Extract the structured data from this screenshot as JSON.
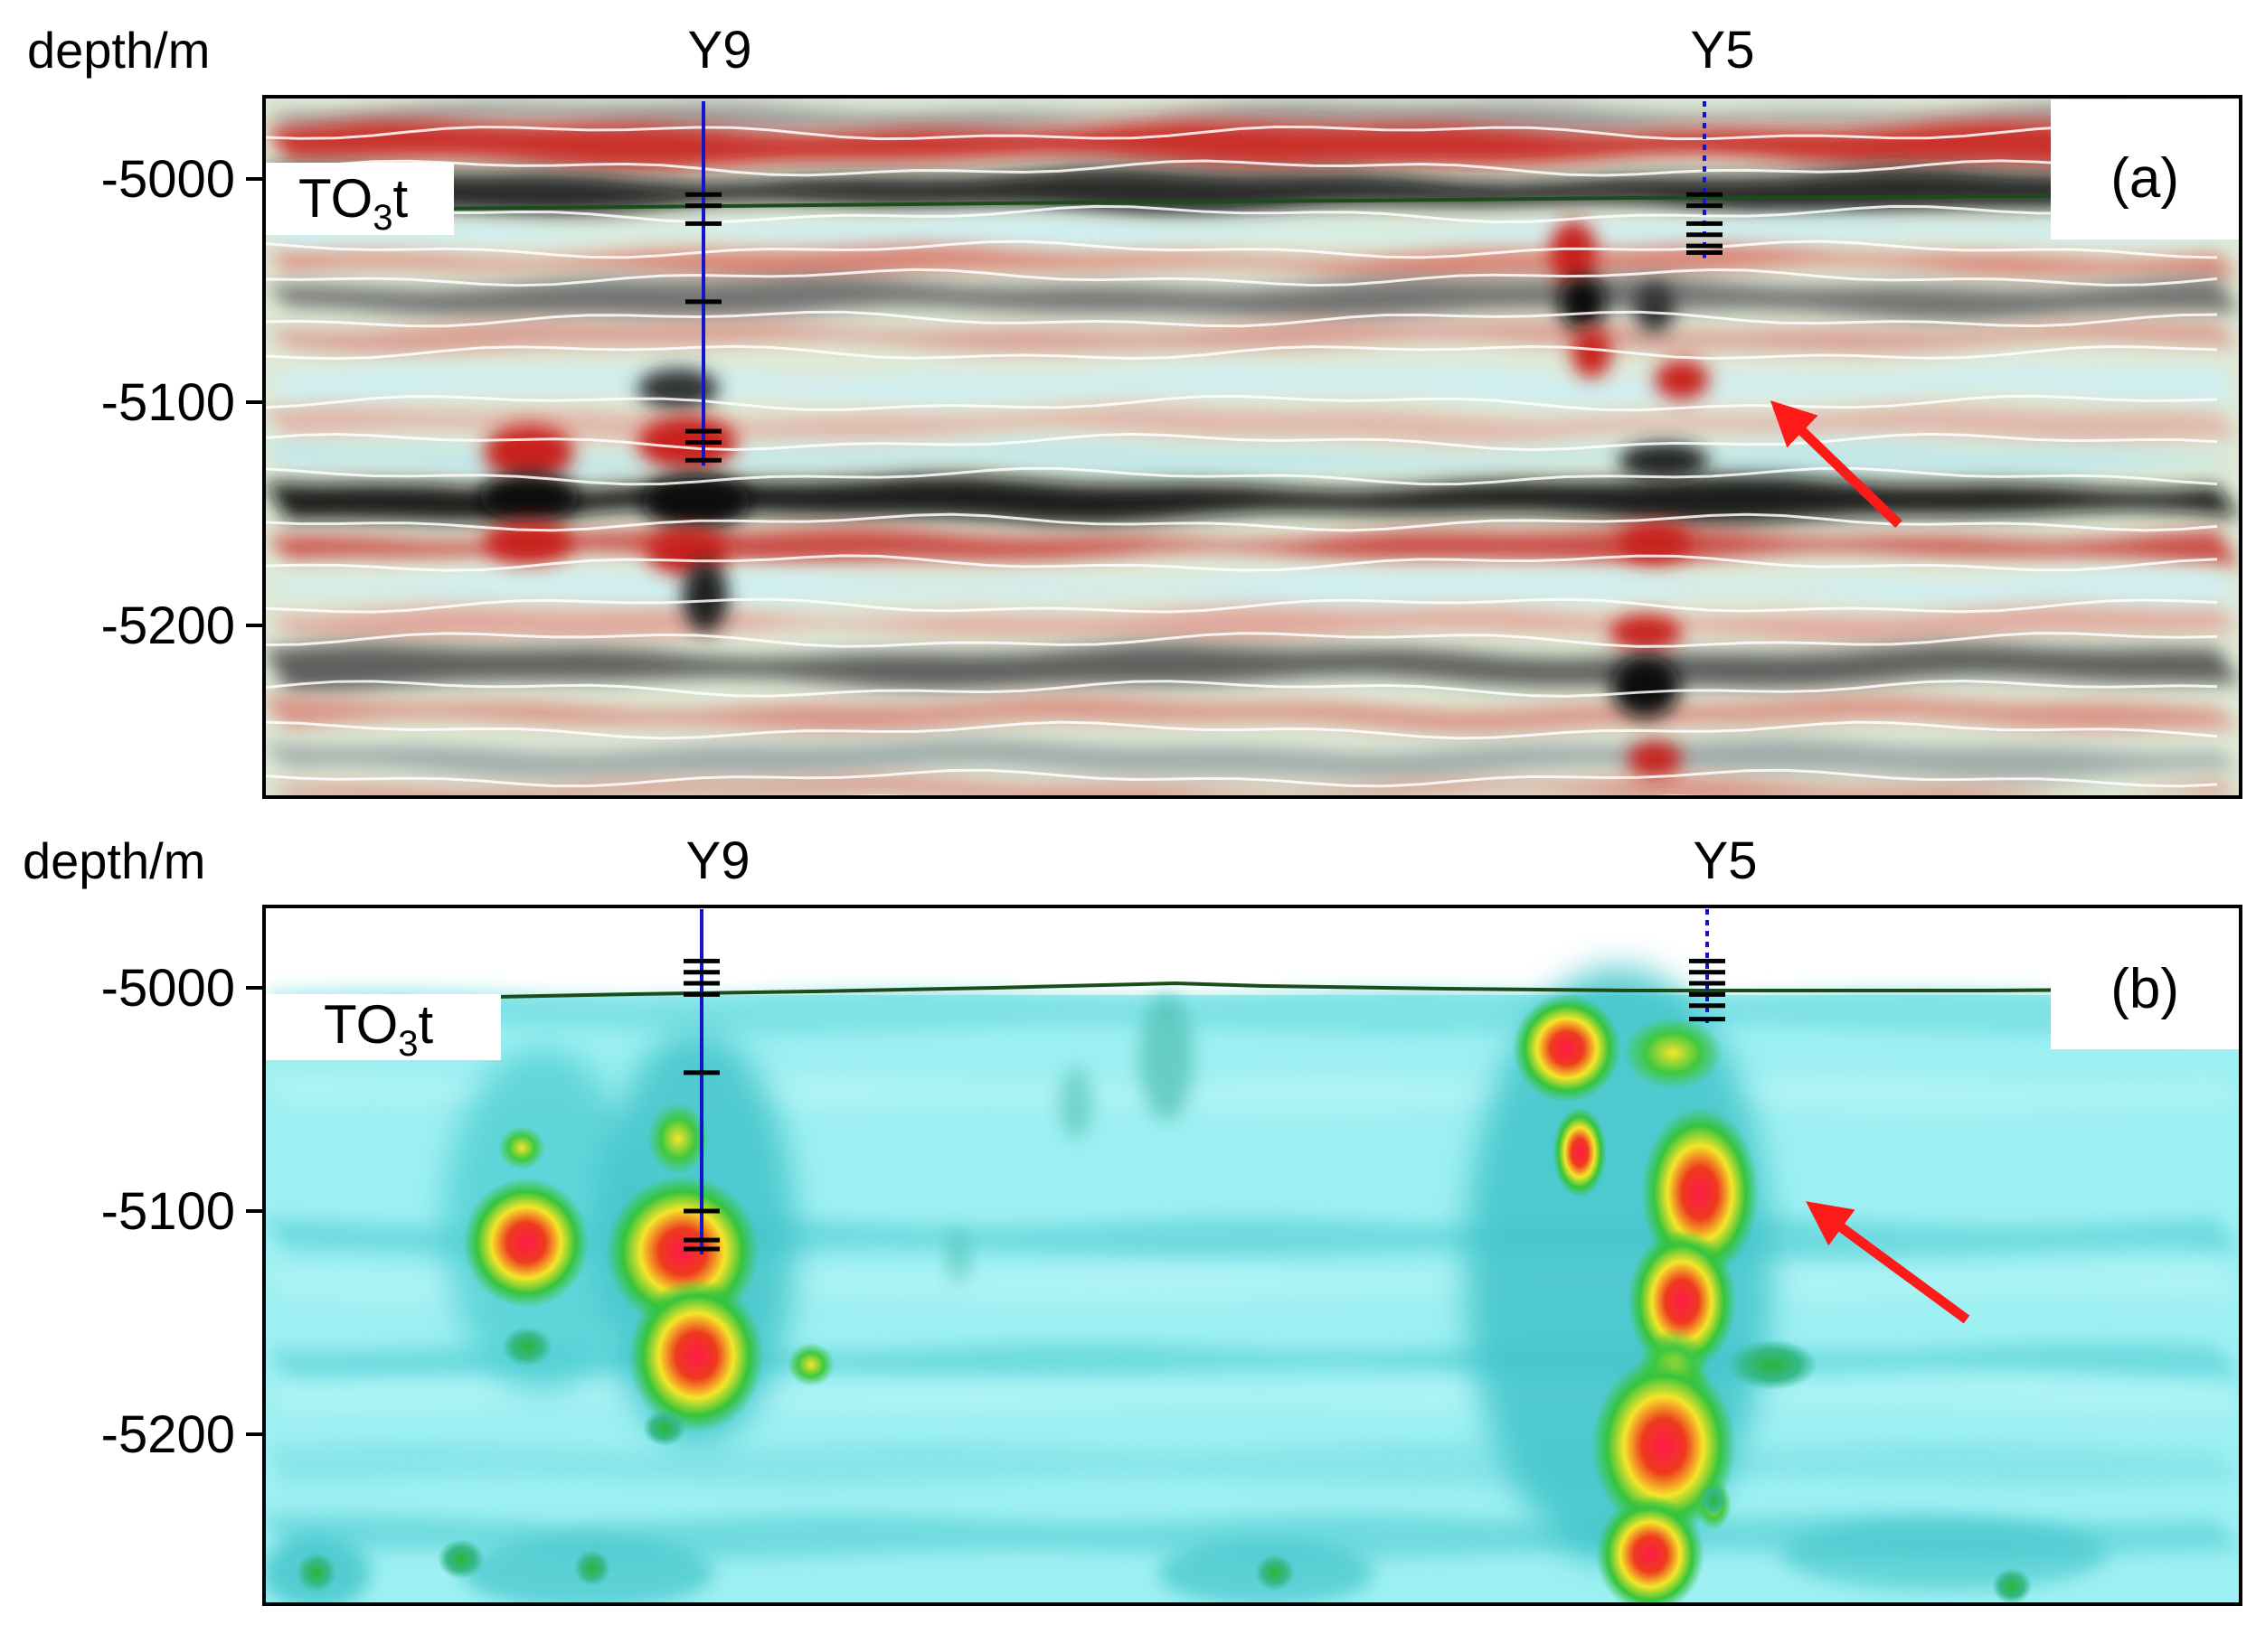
{
  "colors": {
    "seismic_red": "#c8201c",
    "seismic_black": "#141414",
    "seismic_light": "#dfe9d6",
    "seismic_blue_white": "#cfeff3",
    "attr_background": "#8ee8ee",
    "attr_teal": "#3fc7cc",
    "attr_green": "#2fbf3a",
    "attr_yellow": "#f2ee2a",
    "attr_red": "#e8281e",
    "horizon_line": "#1a4d1a",
    "well_line": "#1414c8",
    "arrow": "#ff1a1a"
  },
  "panels": [
    {
      "id": "a",
      "panel_label": "(a)",
      "axis_title": "depth/m",
      "y_ticks": [
        "-5000",
        "-5100",
        "-5200"
      ],
      "y_tick_values": [
        -5000,
        -5100,
        -5200
      ],
      "y_range": [
        -4970,
        -5280
      ],
      "horizon_label": {
        "main": "TO",
        "sub": "3",
        "suffix": "t"
      },
      "wells": [
        {
          "name": "Y9",
          "line": "solid",
          "markers": [
            -5007,
            -5012,
            -5020,
            -5055,
            -5113,
            -5118,
            -5126
          ]
        },
        {
          "name": "Y5",
          "line": "dotted",
          "markers": [
            -5007,
            -5012,
            -5020,
            -5025,
            -5030,
            -5033
          ]
        }
      ],
      "arrow_icon": "red-arrow-icon"
    },
    {
      "id": "b",
      "panel_label": "(b)",
      "axis_title": "depth/m",
      "y_ticks": [
        "-5000",
        "-5100",
        "-5200"
      ],
      "y_tick_values": [
        -5000,
        -5100,
        -5200
      ],
      "y_range": [
        -4970,
        -5280
      ],
      "horizon_label": {
        "main": "TO",
        "sub": "3",
        "suffix": "t"
      },
      "wells": [
        {
          "name": "Y9",
          "line": "solid",
          "markers": [
            -4988,
            -4993,
            -4998,
            -5003,
            -5038,
            -5100,
            -5113,
            -5117
          ]
        },
        {
          "name": "Y5",
          "line": "dotted",
          "markers": [
            -4988,
            -4993,
            -4998,
            -5003,
            -5008,
            -5014
          ]
        }
      ],
      "arrow_icon": "red-arrow-icon"
    }
  ]
}
